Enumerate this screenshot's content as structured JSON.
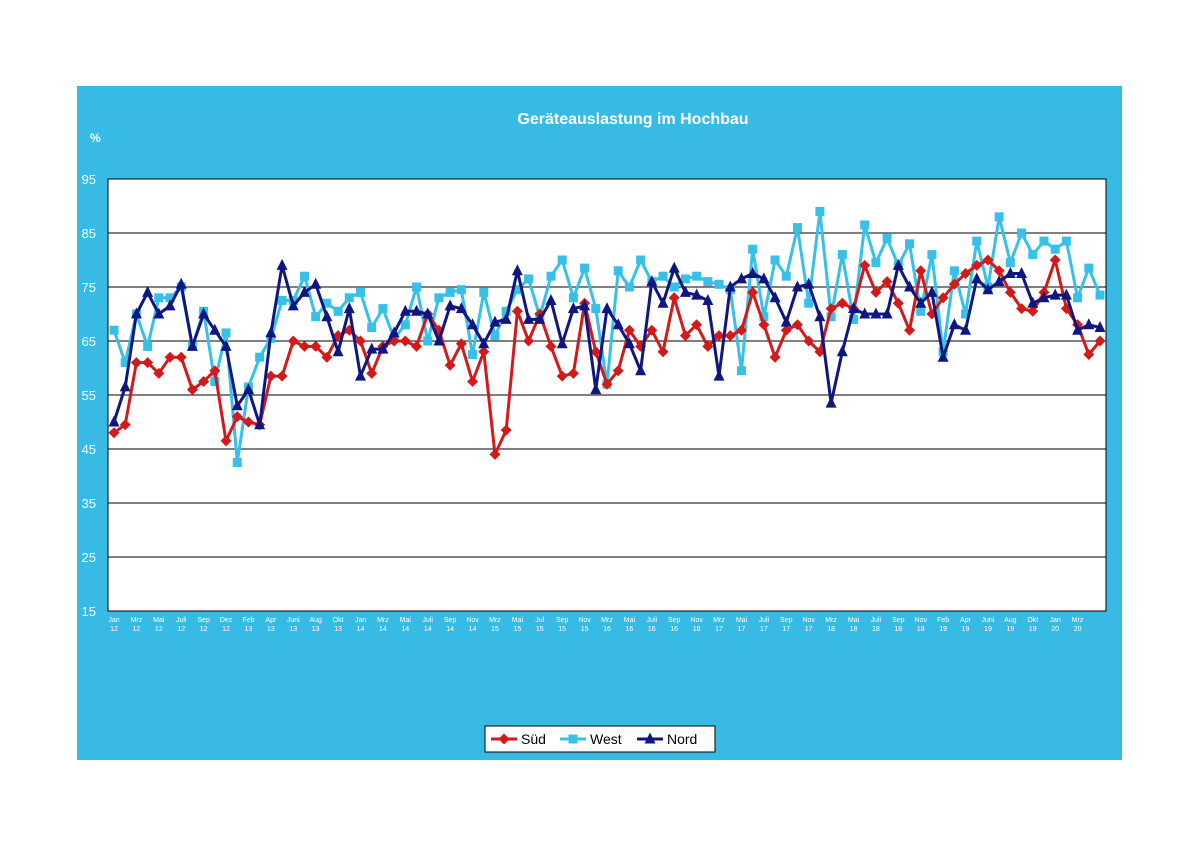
{
  "chart_data": {
    "type": "line",
    "title": "Geräteauslastung im Hochbau",
    "ylabel": "%",
    "xlabel": "",
    "ylim": [
      15,
      95
    ],
    "yticks": [
      15,
      25,
      35,
      45,
      55,
      65,
      75,
      85,
      95
    ],
    "grid": "horizontal",
    "legend_position": "bottom",
    "x_tick_labels": [
      {
        "i": 0,
        "m": "Jan",
        "y": "12"
      },
      {
        "i": 2,
        "m": "Mrz",
        "y": "12"
      },
      {
        "i": 4,
        "m": "Mai",
        "y": "12"
      },
      {
        "i": 6,
        "m": "Juli",
        "y": "12"
      },
      {
        "i": 8,
        "m": "Sep",
        "y": "12"
      },
      {
        "i": 10,
        "m": "Dez",
        "y": "12"
      },
      {
        "i": 12,
        "m": "Feb",
        "y": "13"
      },
      {
        "i": 14,
        "m": "Apr",
        "y": "13"
      },
      {
        "i": 16,
        "m": "Juni",
        "y": "13"
      },
      {
        "i": 18,
        "m": "Aug",
        "y": "13"
      },
      {
        "i": 20,
        "m": "Okt",
        "y": "13"
      },
      {
        "i": 22,
        "m": "Jan",
        "y": "14"
      },
      {
        "i": 24,
        "m": "Mrz",
        "y": "14"
      },
      {
        "i": 26,
        "m": "Mai",
        "y": "14"
      },
      {
        "i": 28,
        "m": "Juli",
        "y": "14"
      },
      {
        "i": 30,
        "m": "Sep",
        "y": "14"
      },
      {
        "i": 32,
        "m": "Nov",
        "y": "14"
      },
      {
        "i": 34,
        "m": "Mrz",
        "y": "15"
      },
      {
        "i": 36,
        "m": "Mai",
        "y": "15"
      },
      {
        "i": 38,
        "m": "Jul",
        "y": "15"
      },
      {
        "i": 40,
        "m": "Sep",
        "y": "15"
      },
      {
        "i": 42,
        "m": "Nov",
        "y": "15"
      },
      {
        "i": 44,
        "m": "Mrz",
        "y": "16"
      },
      {
        "i": 46,
        "m": "Mai",
        "y": "16"
      },
      {
        "i": 48,
        "m": "Juli",
        "y": "16"
      },
      {
        "i": 50,
        "m": "Sep",
        "y": "16"
      },
      {
        "i": 52,
        "m": "Nov",
        "y": "16"
      },
      {
        "i": 54,
        "m": "Mrz",
        "y": "17"
      },
      {
        "i": 56,
        "m": "Mai",
        "y": "17"
      },
      {
        "i": 58,
        "m": "Juli",
        "y": "17"
      },
      {
        "i": 60,
        "m": "Sep",
        "y": "17"
      },
      {
        "i": 62,
        "m": "Nov",
        "y": "17"
      },
      {
        "i": 64,
        "m": "Mrz",
        "y": "18"
      },
      {
        "i": 66,
        "m": "Mai",
        "y": "18"
      },
      {
        "i": 68,
        "m": "Juli",
        "y": "18"
      },
      {
        "i": 70,
        "m": "Sep",
        "y": "18"
      },
      {
        "i": 72,
        "m": "Nov",
        "y": "18"
      },
      {
        "i": 74,
        "m": "Feb",
        "y": "19"
      },
      {
        "i": 76,
        "m": "Apr",
        "y": "19"
      },
      {
        "i": 78,
        "m": "Juni",
        "y": "19"
      },
      {
        "i": 80,
        "m": "Aug",
        "y": "19"
      },
      {
        "i": 82,
        "m": "Okt",
        "y": "19"
      },
      {
        "i": 84,
        "m": "Jan",
        "y": "20"
      },
      {
        "i": 86,
        "m": "Mrz",
        "y": "20"
      }
    ],
    "series": [
      {
        "name": "Süd",
        "color": "#d21a1a",
        "marker": "diamond",
        "values": [
          48,
          49.5,
          61,
          61,
          59,
          62,
          62,
          56,
          57.5,
          59.5,
          46.5,
          51,
          50,
          49.5,
          58.5,
          58.5,
          65,
          64,
          64,
          62,
          66,
          67,
          65,
          59,
          64,
          65,
          65,
          64,
          70,
          67,
          60.5,
          64.5,
          57.5,
          63,
          44,
          48.5,
          70.5,
          65,
          70,
          64,
          58.5,
          59,
          72,
          63,
          57,
          59.5,
          67,
          64,
          67,
          63,
          73,
          66,
          68,
          64,
          66,
          66,
          67,
          74,
          68,
          62,
          67,
          68,
          65,
          63,
          71,
          72,
          71,
          79,
          74,
          76,
          72,
          67,
          78,
          70,
          73,
          75.5,
          77.5,
          79,
          80,
          78,
          74,
          71,
          70.5,
          74,
          80,
          71,
          68,
          62.5,
          65
        ]
      },
      {
        "name": "West",
        "color": "#37c0e8",
        "marker": "square",
        "values": [
          67,
          61,
          70,
          64,
          73,
          73,
          75,
          64,
          70.5,
          57.5,
          66.5,
          42.5,
          56.5,
          62,
          65.5,
          72.5,
          72.5,
          77,
          69.5,
          72,
          70.5,
          73,
          74,
          67.5,
          71,
          65.5,
          68,
          75,
          65,
          73,
          74,
          74.5,
          62.5,
          74,
          66,
          70.5,
          74.5,
          76.5,
          69.5,
          77,
          80,
          73,
          78.5,
          71,
          57,
          78,
          75,
          80,
          76,
          77,
          75,
          76.5,
          77,
          76,
          75.5,
          74.5,
          59.5,
          82,
          69.5,
          80,
          77,
          86,
          72,
          89,
          69.5,
          81,
          69,
          86.5,
          79.5,
          84,
          79,
          83,
          70.5,
          81,
          63,
          78,
          70,
          83.5,
          75,
          88,
          79.5,
          85,
          81,
          83.5,
          82,
          83.5,
          73,
          78.5,
          73.5
        ]
      },
      {
        "name": "Nord",
        "color": "#101680",
        "marker": "triangle",
        "values": [
          50,
          56.5,
          70,
          74,
          70,
          71.5,
          75.5,
          64,
          70,
          67,
          64,
          53,
          56,
          49.5,
          66.5,
          79,
          71.5,
          74,
          75.5,
          69.5,
          63,
          71,
          58.5,
          63.5,
          63.5,
          66.5,
          70.5,
          70.5,
          70,
          65,
          71.5,
          71,
          68,
          64.5,
          68.5,
          69,
          78,
          69,
          69,
          72.5,
          64.5,
          71,
          71.5,
          56,
          71,
          68,
          64.5,
          59.5,
          76,
          72,
          78.5,
          74,
          73.5,
          72.5,
          58.5,
          75,
          76.5,
          77.5,
          76.5,
          73,
          68.5,
          75,
          75.5,
          69.5,
          53.5,
          63,
          71,
          70,
          70,
          70,
          79,
          75,
          72,
          74,
          62,
          68,
          67,
          76.5,
          74.5,
          76,
          77.5,
          77.5,
          72,
          73,
          73.5,
          73.5,
          67,
          68,
          67.5
        ]
      }
    ]
  }
}
